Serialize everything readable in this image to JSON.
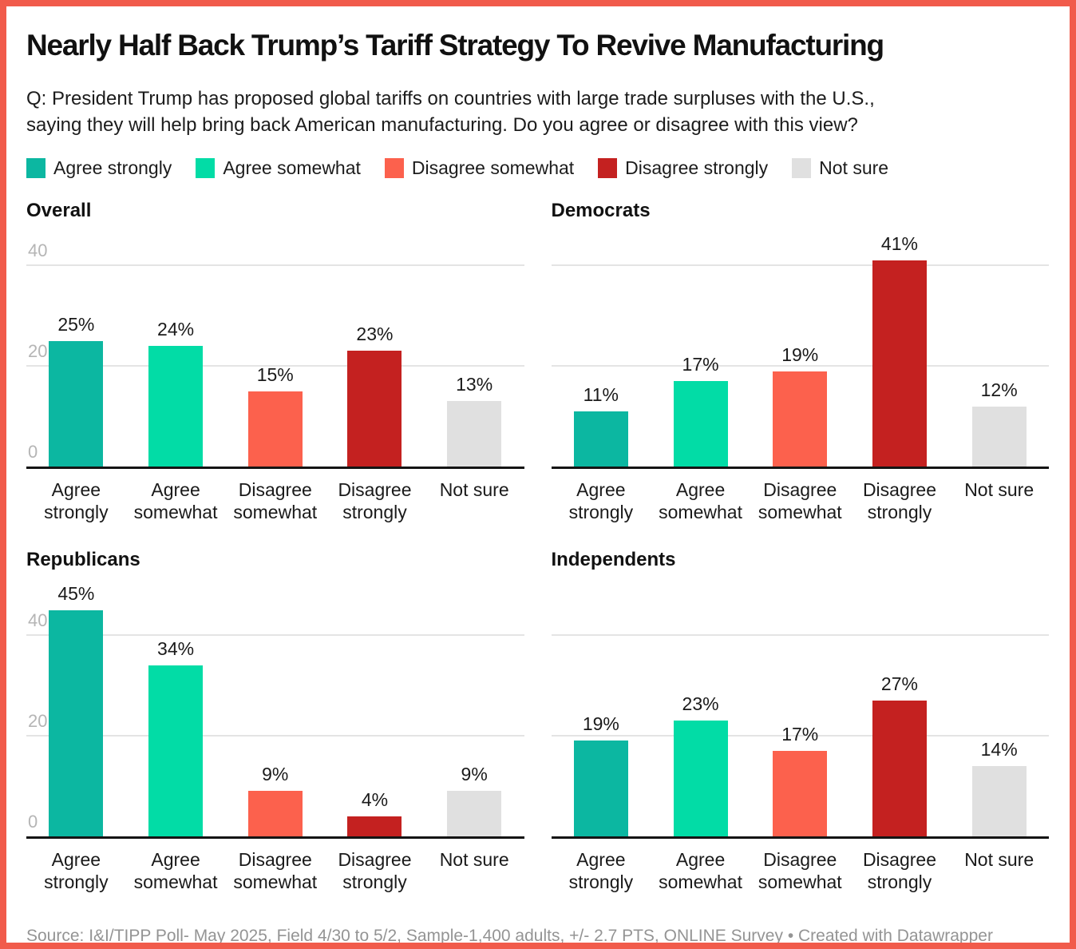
{
  "frame": {
    "border_color": "#f15b4b"
  },
  "header": {
    "title": "Nearly Half Back Trump’s Tariff Strategy To Revive Manufacturing",
    "question": "Q: President Trump has proposed global tariffs on countries with large trade surpluses with the U.S.,\nsaying they will help bring back American manufacturing. Do you agree or disagree with this view?"
  },
  "legend": [
    {
      "label": "Agree strongly",
      "color": "#0cb7a1"
    },
    {
      "label": "Agree somewhat",
      "color": "#02dca6"
    },
    {
      "label": "Disagree somewhat",
      "color": "#fc614d"
    },
    {
      "label": "Disagree strongly",
      "color": "#c42120"
    },
    {
      "label": "Not sure",
      "color": "#e0e0e0"
    }
  ],
  "chart_data": {
    "type": "bar",
    "categories": [
      "Agree strongly",
      "Agree somewhat",
      "Disagree somewhat",
      "Disagree strongly",
      "Not sure"
    ],
    "category_colors": [
      "#0cb7a1",
      "#02dca6",
      "#fc614d",
      "#c42120",
      "#e0e0e0"
    ],
    "unit": "%",
    "ylim": [
      0,
      40
    ],
    "yticks": [
      0,
      20,
      40
    ],
    "gridlines": [
      20,
      40
    ],
    "grid_color": "#e4e4e4",
    "axis_color": "#141414",
    "tick_label_color": "#b5b5b5",
    "legend_position": "top",
    "panels": [
      {
        "title": "Overall",
        "values": [
          25,
          24,
          15,
          23,
          13
        ],
        "show_yticks": true
      },
      {
        "title": "Democrats",
        "values": [
          11,
          17,
          19,
          41,
          12
        ],
        "show_yticks": false
      },
      {
        "title": "Republicans",
        "values": [
          45,
          34,
          9,
          4,
          9
        ],
        "show_yticks": true
      },
      {
        "title": "Independents",
        "values": [
          19,
          23,
          17,
          27,
          14
        ],
        "show_yticks": false
      }
    ]
  },
  "footer": {
    "source": "Source: I&I/TIPP Poll- May 2025, Field 4/30 to 5/2, Sample-1,400 adults, +/- 2.7 PTS, ONLINE Survey • Created with Datawrapper"
  }
}
